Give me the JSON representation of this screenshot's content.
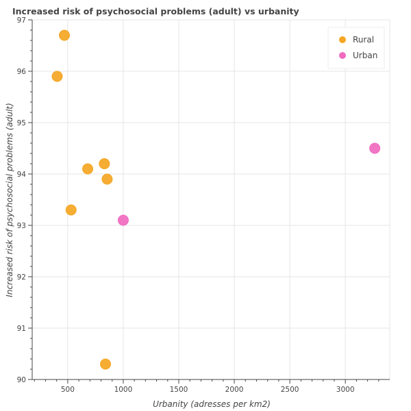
{
  "chart_data": {
    "type": "scatter",
    "title": "Increased risk of psychosocial problems (adult) vs urbanity",
    "xlabel": "Urbanity (adresses per km2)",
    "ylabel": "Increased risk of psychosocial problems (adult)",
    "xlim": [
      180,
      3400
    ],
    "ylim": [
      90,
      97
    ],
    "xticks": [
      500,
      1000,
      1500,
      2000,
      2500,
      3000
    ],
    "yticks": [
      90,
      91,
      92,
      93,
      94,
      95,
      96,
      97
    ],
    "grid": true,
    "legend_position": "top-right",
    "series": [
      {
        "name": "Rural",
        "color": "#f5a623",
        "points": [
          {
            "x": 470,
            "y": 96.7
          },
          {
            "x": 405,
            "y": 95.9
          },
          {
            "x": 830,
            "y": 94.2
          },
          {
            "x": 680,
            "y": 94.1
          },
          {
            "x": 855,
            "y": 93.9
          },
          {
            "x": 530,
            "y": 93.3
          },
          {
            "x": 840,
            "y": 90.3
          }
        ]
      },
      {
        "name": "Urban",
        "color": "#f06bbf",
        "points": [
          {
            "x": 3265,
            "y": 94.5
          },
          {
            "x": 1000,
            "y": 93.1
          }
        ]
      }
    ]
  }
}
